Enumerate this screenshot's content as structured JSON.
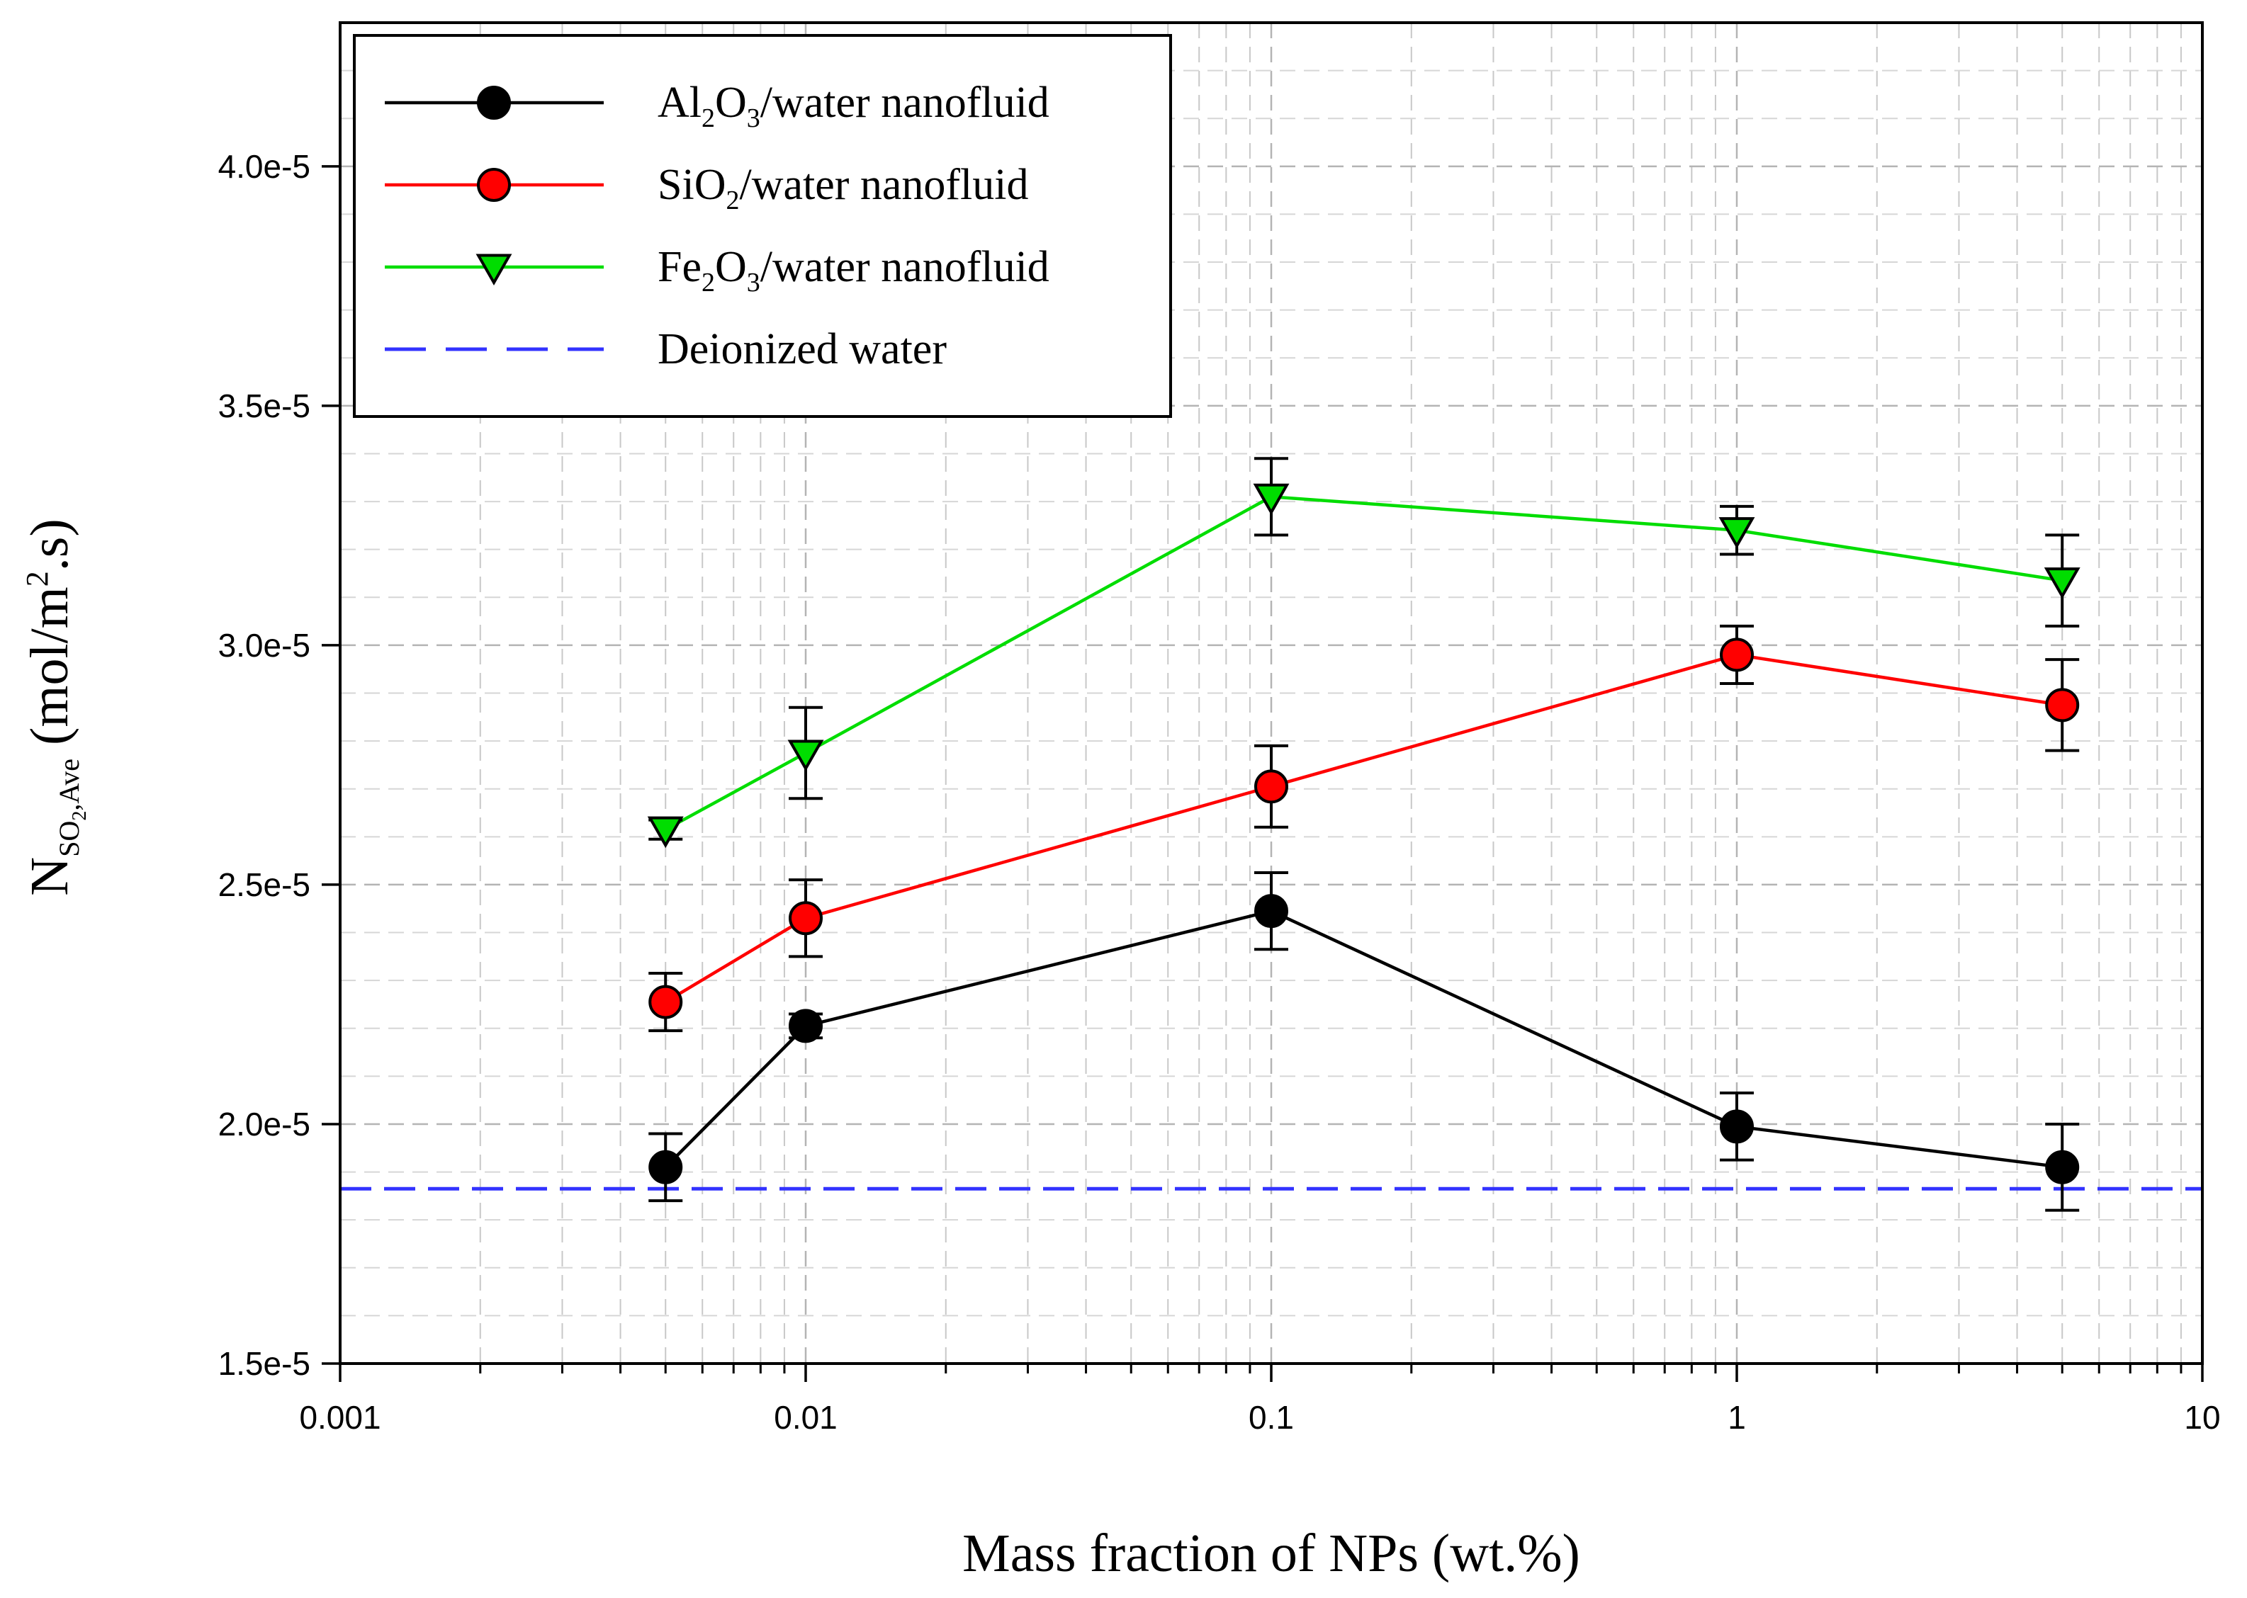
{
  "chart_data": {
    "type": "line",
    "x_scale": "log",
    "xlim": [
      0.001,
      10
    ],
    "ylim": [
      1.5e-05,
      4.3e-05
    ],
    "x_ticks": [
      0.001,
      0.01,
      0.1,
      1,
      10
    ],
    "x_tick_labels": [
      "0.001",
      "0.01",
      "0.1",
      "1",
      "10"
    ],
    "y_ticks": [
      1.5e-05,
      2e-05,
      2.5e-05,
      3e-05,
      3.5e-05,
      4e-05
    ],
    "y_tick_labels": [
      "1.5e-5",
      "2.0e-5",
      "2.5e-5",
      "3.0e-5",
      "3.5e-5",
      "4.0e-5"
    ],
    "grid": true,
    "legend_position": "top-left",
    "xlabel": "Mass fraction of  NPs  (wt.%)",
    "ylabel": {
      "main": "N",
      "subscript": "SO",
      "subscript_sub": "2",
      "subscript_rest": ",Ave",
      "units_open": "(mol/m",
      "units_sup": "2",
      "units_close": ".s)"
    },
    "x": [
      0.005,
      0.01,
      0.1,
      1,
      5
    ],
    "series": [
      {
        "key": "al2o3",
        "name": "Al2O3/water nanofluid",
        "label_parts": [
          "Al",
          "2",
          "O",
          "3",
          "/water nanofluid"
        ],
        "color": "#000000",
        "marker_fill": "#000000",
        "marker": "circle",
        "values": [
          1.91e-05,
          2.205e-05,
          2.445e-05,
          1.995e-05,
          1.91e-05
        ],
        "errors": [
          7e-07,
          2.5e-07,
          8e-07,
          7e-07,
          9e-07
        ]
      },
      {
        "key": "sio2",
        "name": "SiO2/water nanofluid",
        "label_parts": [
          "SiO",
          "2",
          "/water nanofluid"
        ],
        "color": "#ff0000",
        "marker_fill": "#ff0000",
        "marker": "circle",
        "values": [
          2.255e-05,
          2.43e-05,
          2.705e-05,
          2.98e-05,
          2.875e-05
        ],
        "errors": [
          6e-07,
          8e-07,
          8.5e-07,
          6e-07,
          9.5e-07
        ]
      },
      {
        "key": "fe2o3",
        "name": "Fe2O3/water nanofluid",
        "label_parts": [
          "Fe",
          "2",
          "O",
          "3",
          "/water nanofluid"
        ],
        "color": "#00dd00",
        "marker_fill": "#00dd00",
        "marker": "triangle-down",
        "values": [
          2.615e-05,
          2.775e-05,
          3.31e-05,
          3.24e-05,
          3.135e-05
        ],
        "errors": [
          2e-07,
          9.5e-07,
          8e-07,
          5e-07,
          9.5e-07
        ]
      }
    ],
    "reference_line": {
      "key": "water",
      "name": "Deionized water",
      "value": 1.865e-05,
      "color": "#3333ff",
      "style": "dashed"
    }
  }
}
